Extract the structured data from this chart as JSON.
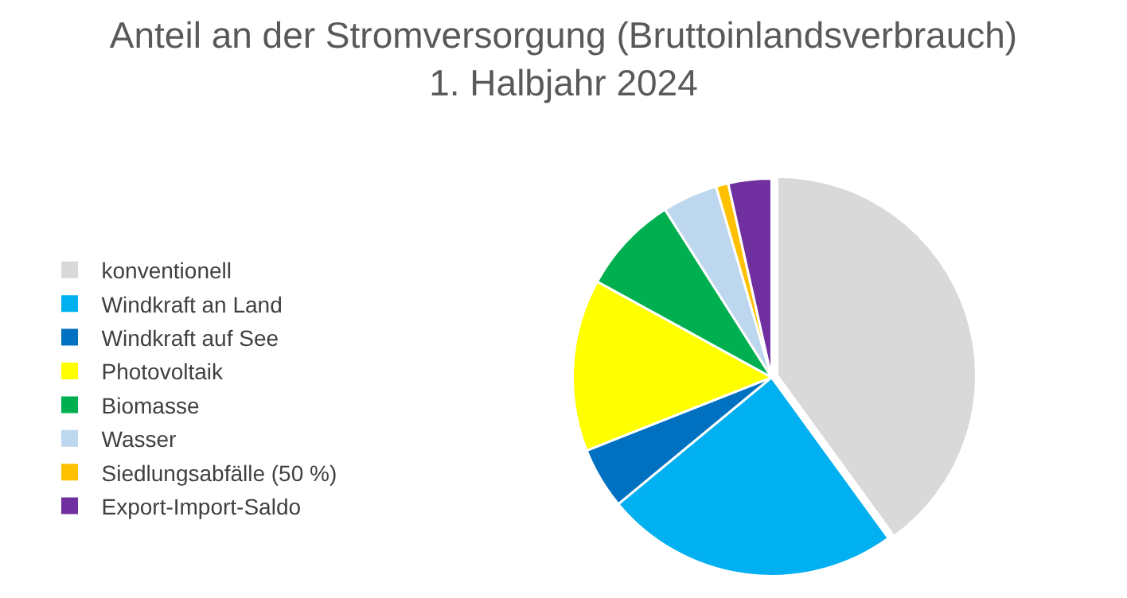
{
  "chart_data": {
    "type": "pie",
    "title": "Anteil an der Stromversorgung (Bruttoinlandsverbrauch)",
    "subtitle": "1. Halbjahr 2024",
    "categories": [
      "konventionell",
      "Windkraft an Land",
      "Windkraft auf See",
      "Photovoltaik",
      "Biomasse",
      "Wasser",
      "Siedlungsabfälle (50 %)",
      "Export-Import-Saldo"
    ],
    "values": [
      40,
      24,
      5,
      14,
      8,
      4.5,
      1,
      3.5
    ],
    "colors": [
      "#d9d9d9",
      "#00b0f0",
      "#0070c0",
      "#ffff00",
      "#00b050",
      "#bdd7ee",
      "#ffc000",
      "#7030a0"
    ],
    "legend": "left"
  }
}
